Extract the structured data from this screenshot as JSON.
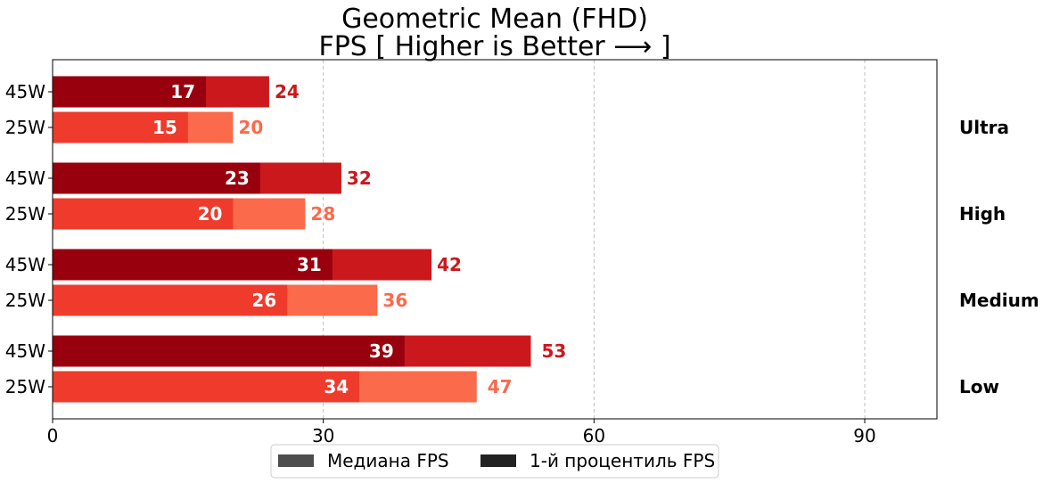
{
  "chart_data": {
    "type": "bar",
    "orientation": "horizontal",
    "title_line1": "Geometric Mean (FHD)",
    "title_line2": "FPS [ Higher is Better ⟶ ]",
    "xlim": [
      0,
      98
    ],
    "xticks": [
      0,
      30,
      60,
      90
    ],
    "grid": "x-dashed",
    "groups": [
      {
        "label": "Ultra",
        "rows": [
          {
            "power": "45W",
            "one_percent_low": 17,
            "median": 24
          },
          {
            "power": "25W",
            "one_percent_low": 15,
            "median": 20
          }
        ]
      },
      {
        "label": "High",
        "rows": [
          {
            "power": "45W",
            "one_percent_low": 23,
            "median": 32
          },
          {
            "power": "25W",
            "one_percent_low": 20,
            "median": 28
          }
        ]
      },
      {
        "label": "Medium",
        "rows": [
          {
            "power": "45W",
            "one_percent_low": 31,
            "median": 42
          },
          {
            "power": "25W",
            "one_percent_low": 26,
            "median": 36
          }
        ]
      },
      {
        "label": "Low",
        "rows": [
          {
            "power": "45W",
            "one_percent_low": 39,
            "median": 53
          },
          {
            "power": "25W",
            "one_percent_low": 34,
            "median": 47
          }
        ]
      }
    ],
    "colors": {
      "45W": {
        "median": "#cb181d",
        "one_percent_low": "#99000d"
      },
      "25W": {
        "median": "#fb6a4a",
        "one_percent_low": "#ef3b2c"
      }
    },
    "legend": {
      "placement": "bottom-center",
      "items": [
        {
          "label": "Медиана FPS",
          "color": "#4d4d4d"
        },
        {
          "label": "1-й процентиль FPS",
          "color": "#222222"
        }
      ]
    }
  }
}
